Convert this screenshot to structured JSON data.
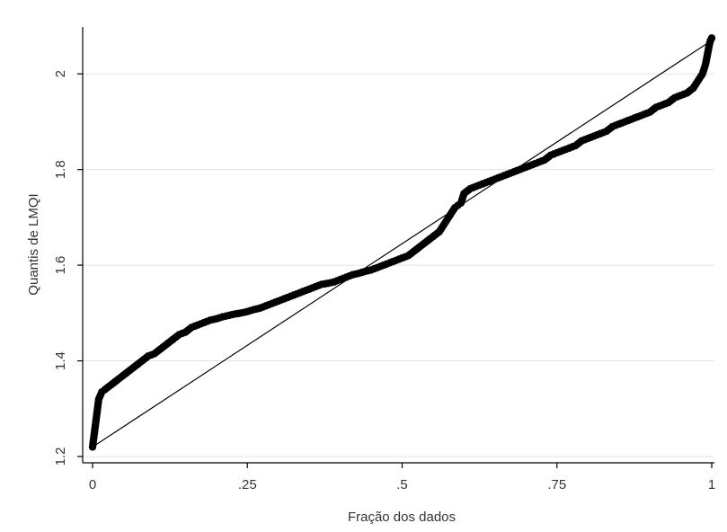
{
  "chart_data": {
    "type": "scatter",
    "title": "",
    "xlabel": "Fração dos dados",
    "ylabel": "Quantis de LMQI",
    "xlim": [
      0,
      1
    ],
    "ylim": [
      1.2,
      2.1
    ],
    "x_ticks": [
      {
        "value": 0,
        "label": "0"
      },
      {
        "value": 0.25,
        "label": ".25"
      },
      {
        "value": 0.5,
        "label": ".5"
      },
      {
        "value": 0.75,
        "label": ".75"
      },
      {
        "value": 1,
        "label": "1"
      }
    ],
    "y_ticks": [
      {
        "value": 1.2,
        "label": "1.2"
      },
      {
        "value": 1.4,
        "label": "1.4"
      },
      {
        "value": 1.6,
        "label": "1.6"
      },
      {
        "value": 1.8,
        "label": "1.8"
      },
      {
        "value": 2.0,
        "label": "2"
      }
    ],
    "grid": "horizontal",
    "reference_line": {
      "x": [
        0,
        1
      ],
      "y": [
        1.22,
        2.07
      ]
    },
    "series": [
      {
        "marker_color": "#000000",
        "x": [
          0.0,
          0.002,
          0.004,
          0.006,
          0.008,
          0.01,
          0.015,
          0.02,
          0.03,
          0.04,
          0.05,
          0.06,
          0.07,
          0.08,
          0.09,
          0.1,
          0.11,
          0.12,
          0.13,
          0.14,
          0.15,
          0.16,
          0.17,
          0.18,
          0.19,
          0.2,
          0.21,
          0.22,
          0.23,
          0.24,
          0.25,
          0.26,
          0.27,
          0.28,
          0.29,
          0.3,
          0.31,
          0.32,
          0.33,
          0.34,
          0.35,
          0.36,
          0.37,
          0.38,
          0.39,
          0.4,
          0.41,
          0.42,
          0.43,
          0.44,
          0.45,
          0.46,
          0.47,
          0.48,
          0.49,
          0.5,
          0.51,
          0.52,
          0.53,
          0.54,
          0.55,
          0.56,
          0.565,
          0.57,
          0.575,
          0.58,
          0.585,
          0.59,
          0.595,
          0.6,
          0.61,
          0.62,
          0.63,
          0.64,
          0.65,
          0.66,
          0.67,
          0.68,
          0.69,
          0.7,
          0.71,
          0.72,
          0.73,
          0.74,
          0.75,
          0.76,
          0.77,
          0.78,
          0.79,
          0.8,
          0.81,
          0.82,
          0.83,
          0.84,
          0.85,
          0.86,
          0.87,
          0.88,
          0.89,
          0.9,
          0.91,
          0.92,
          0.93,
          0.94,
          0.95,
          0.96,
          0.97,
          0.975,
          0.98,
          0.985,
          0.99,
          0.993,
          0.996,
          0.998,
          1.0
        ],
        "y": [
          1.22,
          1.24,
          1.26,
          1.28,
          1.3,
          1.32,
          1.335,
          1.34,
          1.35,
          1.36,
          1.37,
          1.38,
          1.39,
          1.4,
          1.41,
          1.415,
          1.425,
          1.435,
          1.445,
          1.455,
          1.46,
          1.47,
          1.475,
          1.48,
          1.485,
          1.488,
          1.492,
          1.495,
          1.498,
          1.5,
          1.503,
          1.507,
          1.51,
          1.515,
          1.52,
          1.525,
          1.53,
          1.535,
          1.54,
          1.545,
          1.55,
          1.555,
          1.56,
          1.562,
          1.565,
          1.57,
          1.575,
          1.58,
          1.583,
          1.587,
          1.59,
          1.595,
          1.6,
          1.605,
          1.61,
          1.615,
          1.62,
          1.63,
          1.64,
          1.65,
          1.66,
          1.67,
          1.68,
          1.69,
          1.7,
          1.71,
          1.72,
          1.725,
          1.73,
          1.75,
          1.76,
          1.765,
          1.77,
          1.775,
          1.78,
          1.785,
          1.79,
          1.795,
          1.8,
          1.805,
          1.81,
          1.815,
          1.82,
          1.83,
          1.835,
          1.84,
          1.845,
          1.85,
          1.86,
          1.865,
          1.87,
          1.875,
          1.88,
          1.89,
          1.895,
          1.9,
          1.905,
          1.91,
          1.915,
          1.92,
          1.93,
          1.935,
          1.94,
          1.95,
          1.955,
          1.96,
          1.97,
          1.98,
          1.99,
          2.0,
          2.02,
          2.04,
          2.06,
          2.07,
          2.075
        ]
      }
    ]
  }
}
